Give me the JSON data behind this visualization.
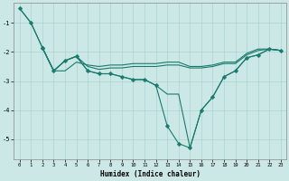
{
  "xlabel": "Humidex (Indice chaleur)",
  "bg_color": "#cce8e6",
  "grid_color": "#aad4d0",
  "line_color": "#1a7a6e",
  "ylim": [
    -5.7,
    -0.3
  ],
  "yticks": [
    -5,
    -4,
    -3,
    -2,
    -1
  ],
  "yticklabels": [
    "-5",
    "-4",
    "-3",
    "-2",
    "-1"
  ],
  "xlim": [
    -0.5,
    23.5
  ],
  "xticks": [
    0,
    1,
    2,
    3,
    4,
    5,
    6,
    7,
    8,
    9,
    10,
    11,
    12,
    13,
    14,
    15,
    16,
    17,
    18,
    19,
    20,
    21,
    22,
    23
  ],
  "marker_size": 2.5,
  "linewidth": 0.8,
  "line_steep": {
    "x": [
      0,
      1,
      2
    ],
    "y": [
      -0.5,
      -1.0,
      -1.85
    ]
  },
  "line_top_smooth": {
    "x": [
      0,
      1,
      2,
      3,
      4,
      5,
      6,
      7,
      8,
      9,
      10,
      11,
      12,
      13,
      14,
      15,
      16,
      17,
      18,
      19,
      20,
      21,
      22,
      23
    ],
    "y": [
      -0.5,
      -1.0,
      -1.85,
      -2.65,
      -2.65,
      -2.35,
      -2.45,
      -2.5,
      -2.45,
      -2.45,
      -2.4,
      -2.4,
      -2.4,
      -2.35,
      -2.35,
      -2.5,
      -2.5,
      -2.45,
      -2.35,
      -2.35,
      -2.05,
      -1.9,
      -1.9,
      -1.95
    ],
    "markers": false
  },
  "line_upper_band": {
    "x": [
      2,
      3,
      4,
      5,
      6,
      7,
      8,
      9,
      10,
      11,
      12,
      13,
      14,
      15,
      16,
      17,
      18,
      19,
      20,
      21,
      22,
      23
    ],
    "y": [
      -1.85,
      -2.65,
      -2.3,
      -2.15,
      -2.5,
      -2.6,
      -2.55,
      -2.55,
      -2.5,
      -2.5,
      -2.5,
      -2.45,
      -2.45,
      -2.55,
      -2.55,
      -2.5,
      -2.4,
      -2.4,
      -2.1,
      -1.95,
      -1.9,
      -1.95
    ],
    "markers": false
  },
  "line_lower_band": {
    "x": [
      2,
      3,
      4,
      5,
      6,
      7,
      8,
      9,
      10,
      11,
      12,
      13,
      14,
      15,
      16,
      17,
      18,
      19,
      20,
      21,
      22,
      23
    ],
    "y": [
      -1.85,
      -2.65,
      -2.3,
      -2.15,
      -2.65,
      -2.75,
      -2.75,
      -2.85,
      -2.95,
      -2.95,
      -3.15,
      -3.45,
      -3.45,
      -5.3,
      -4.0,
      -3.55,
      -2.85,
      -2.65,
      -2.2,
      -2.1,
      -1.9,
      -1.95
    ],
    "markers": false
  },
  "line_main_dip": {
    "x": [
      2,
      3,
      4,
      5,
      6,
      7,
      8,
      9,
      10,
      11,
      12,
      13,
      14,
      15,
      16,
      17,
      18,
      19,
      20,
      21,
      22,
      23
    ],
    "y": [
      -1.85,
      -2.65,
      -2.3,
      -2.15,
      -2.65,
      -2.75,
      -2.75,
      -2.85,
      -2.95,
      -2.95,
      -3.15,
      -4.55,
      -5.15,
      -5.3,
      -4.0,
      -3.55,
      -2.85,
      -2.65,
      -2.2,
      -2.1,
      -1.9,
      -1.95
    ],
    "markers": true
  }
}
